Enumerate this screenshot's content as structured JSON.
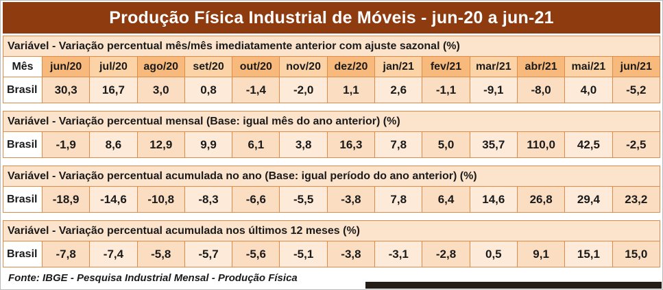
{
  "page": {
    "title": "Produção Física Industrial de Móveis - jun-20 a jun-21",
    "footer": "Fonte: IBGE - Pesquisa Industrial Mensal - Produção Física"
  },
  "table": {
    "corner_label": "Mês",
    "row_label": "Brasil"
  },
  "chart_data": {
    "type": "table",
    "title": "Produção Física Industrial de Móveis - jun-20 a jun-21",
    "row_label": "Brasil",
    "categories": [
      "jun/20",
      "jul/20",
      "ago/20",
      "set/20",
      "out/20",
      "nov/20",
      "dez/20",
      "jan/21",
      "fev/21",
      "mar/21",
      "abr/21",
      "mai/21",
      "jun/21"
    ],
    "series": [
      {
        "name": "Variável - Variação percentual mês/mês imediatamente anterior com ajuste sazonal (%)",
        "values": [
          30.3,
          16.7,
          3.0,
          0.8,
          -1.4,
          -2.0,
          1.1,
          2.6,
          -1.1,
          -9.1,
          -8.0,
          4.0,
          -5.2
        ],
        "display": [
          "30,3",
          "16,7",
          "3,0",
          "0,8",
          "-1,4",
          "-2,0",
          "1,1",
          "2,6",
          "-1,1",
          "-9,1",
          "-8,0",
          "4,0",
          "-5,2"
        ]
      },
      {
        "name": "Variável - Variação percentual mensal (Base: igual mês do ano anterior) (%)",
        "values": [
          -1.9,
          8.6,
          12.9,
          9.9,
          6.1,
          3.8,
          16.3,
          7.8,
          5.0,
          35.7,
          110.0,
          42.5,
          -2.5
        ],
        "display": [
          "-1,9",
          "8,6",
          "12,9",
          "9,9",
          "6,1",
          "3,8",
          "16,3",
          "7,8",
          "5,0",
          "35,7",
          "110,0",
          "42,5",
          "-2,5"
        ]
      },
      {
        "name": "Variável - Variação percentual acumulada no ano (Base: igual período do ano anterior) (%)",
        "values": [
          -18.9,
          -14.6,
          -10.8,
          -8.3,
          -6.6,
          -5.5,
          -3.8,
          7.8,
          6.4,
          14.6,
          26.8,
          29.4,
          23.2
        ],
        "display": [
          "-18,9",
          "-14,6",
          "-10,8",
          "-8,3",
          "-6,6",
          "-5,5",
          "-3,8",
          "7,8",
          "6,4",
          "14,6",
          "26,8",
          "29,4",
          "23,2"
        ]
      },
      {
        "name": "Variável - Variação percentual acumulada nos últimos 12 meses (%)",
        "values": [
          -7.8,
          -7.4,
          -5.8,
          -5.7,
          -5.6,
          -5.1,
          -3.8,
          -3.1,
          -2.8,
          0.5,
          9.1,
          15.1,
          15.0
        ],
        "display": [
          "-7,8",
          "-7,4",
          "-5,8",
          "-5,7",
          "-5,6",
          "-5,1",
          "-3,8",
          "-3,1",
          "-2,8",
          "0,5",
          "9,1",
          "15,1",
          "15,0"
        ]
      }
    ]
  },
  "colors": {
    "title_bg": "#8E3B10",
    "title_text": "#FFFFFF",
    "section_bg": "#FCE3CB",
    "header_col_a": "#F7B97C",
    "header_col_b": "#FBD3A6",
    "cell_col_a": "#FBDDC2",
    "cell_col_b": "#FDEAD8",
    "border": "#DD8B46",
    "text": "#1A1A1A",
    "strip": "#241C16"
  }
}
